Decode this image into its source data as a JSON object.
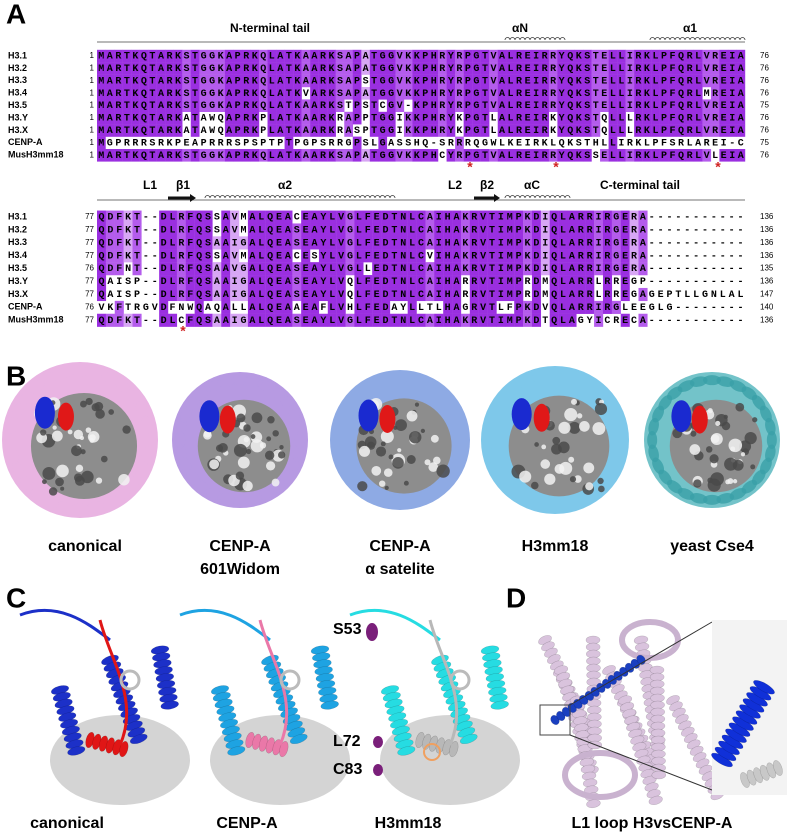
{
  "panel_a": {
    "letter": "A",
    "block1": {
      "regions": [
        "N-terminal tail",
        "αN",
        "α1"
      ],
      "rows": [
        {
          "name": "H3.1",
          "start": 1,
          "sequence": "MARTKQTARKSTGGKAPRKQLATKAARKSAPATGGVKKPHRYRPGTVALREIRRYQKSTELLIRKLPFQRLVREIA",
          "end": 76
        },
        {
          "name": "H3.2",
          "start": 1,
          "sequence": "MARTKQTARKSTGGKAPRKQLATKAARKSAPATGGVKKPHRYRPGTVALREIRRYQKSTELLIRKLPFQRLVREIA",
          "end": 76
        },
        {
          "name": "H3.3",
          "start": 1,
          "sequence": "MARTKQTARKSTGGKAPRKQLATKAARKSAPSTGGVKKPHRYRPGTVALREIRRYQKSTELLIRKLPFQRLVREIA",
          "end": 76
        },
        {
          "name": "H3.4",
          "start": 1,
          "sequence": "MARTKQTARKSTGGKAPRKQLATKVARKSAPATGGVKKPHRYRPGTVALREIRRYQKSTELLIRKLPFQRLMREIA",
          "end": 76
        },
        {
          "name": "H3.5",
          "start": 1,
          "sequence": "MARTKQTARKSTGGKAPRKQLATKAARKSTPSTCGV-KPHRYRPGTVALREIRRYQKSTELLIRKLPFQRLVREIA",
          "end": 75
        },
        {
          "name": "H3.Y",
          "start": 1,
          "sequence": "MARTKQTARKATAWQAPRKPLATKAARKRAPPTGGIKKPHRYKPGTLALREIRKYQKSTQLLLRKLPFQRLVREIA",
          "end": 76
        },
        {
          "name": "H3.X",
          "start": 1,
          "sequence": "MARTKQTARKATAWQAPRKPLATKAARKRASPTGGIKKPHRYKPGTLALREIRKYQKSTQLLLRKLPFQRLVREIA",
          "end": 76
        },
        {
          "name": "CENP-A",
          "start": 1,
          "sequence": "MGPRRRSRKPEAPRRRSPSPTPTPGPSRRGPSLGASSHQ-SRRRQGWLKEIRKLQKSTHLLIRKLPFSRLAREI-C",
          "end": 75
        },
        {
          "name": "MusH3mm18",
          "start": 1,
          "sequence": "MARTKQTARKSTGGKAPRKQLATKAARKSAPATGGVKKPHCYRPGTVALREIRRYQKSSELLIRKLPFQRLVLEIA",
          "end": 76
        }
      ],
      "asterisks": [
        "*",
        "*",
        "*"
      ]
    },
    "block2": {
      "regions": [
        "L1",
        "β1",
        "α2",
        "L2",
        "β2",
        "αC",
        "C-terminal tail"
      ],
      "rows": [
        {
          "name": "H3.1",
          "start": 77,
          "sequence": "QDFKT--DLRFQSSAVMALQEACEAYLVGLFEDTNLCAIHAKRVTIMPKDIQLARRIRGERA-----------",
          "end": 136
        },
        {
          "name": "H3.2",
          "start": 77,
          "sequence": "QDFKT--DLRFQSSAVMALQEASEAYLVGLFEDTNLCAIHAKRVTIMPKDIQLARRIRGERA-----------",
          "end": 136
        },
        {
          "name": "H3.3",
          "start": 77,
          "sequence": "QDFKT--DLRFQSAAIGALQEASEAYLVGLFEDTNLCAIHAKRVTIMPKDIQLARRIRGERA-----------",
          "end": 136
        },
        {
          "name": "H3.4",
          "start": 77,
          "sequence": "QDFKT--DLRFQSSAVMALQEACESYLVGLFEDTNLCVIHAKRVTIMPKDIQLARRIRGERA-----------",
          "end": 136
        },
        {
          "name": "H3.5",
          "start": 76,
          "sequence": "QDFNT--DLRFQSAAVGALQEASEAYLVGLLEDTNLCAIHAKRVTIMPKDIQLARRIRGERA-----------",
          "end": 135
        },
        {
          "name": "H3.Y",
          "start": 77,
          "sequence": "QAISP--DLRFQSAAIGALQEASEAYLVQLFEDTNLCAIHARRVTIMPRDMQLARRLRREGP-----------",
          "end": 136
        },
        {
          "name": "H3.X",
          "start": 77,
          "sequence": "QAISP--DLRFQSAAIGALQEASEAYLVQLFEDTNLCAIHARRVTIMPRDMQLARRLRREGAGEPTLLGNLAL",
          "end": 147
        },
        {
          "name": "CENP-A",
          "start": 76,
          "sequence": "VKFTRGVDFNWQAQALLALQEAAEAFLVHLFEDAYLLTLHAGRVTLFPKDVQLARRIRGLEEGLG--------",
          "end": 140
        },
        {
          "name": "MusH3mm18",
          "start": 77,
          "sequence": "QDFKT--DLCFQSAAIGALQEASEAYLVGLFEDTNLCAIHAKRVTIMPKDTQLAGYICRECA-----------",
          "end": 136
        }
      ],
      "asterisks": [
        "*"
      ]
    }
  },
  "panel_b": {
    "letter": "B",
    "labels": [
      [
        "canonical"
      ],
      [
        "CENP-A",
        "601Widom"
      ],
      [
        "CENP-A",
        "α satelite"
      ],
      [
        "H3mm18"
      ],
      [
        "yeast Cse4"
      ]
    ]
  },
  "panel_c": {
    "letter": "C",
    "labels": [
      "canonical",
      "CENP-A",
      "H3mm18"
    ],
    "residues": [
      "S53",
      "L72",
      "C83"
    ]
  },
  "panel_d": {
    "letter": "D",
    "label": "L1 loop H3vsCENP-A"
  }
}
